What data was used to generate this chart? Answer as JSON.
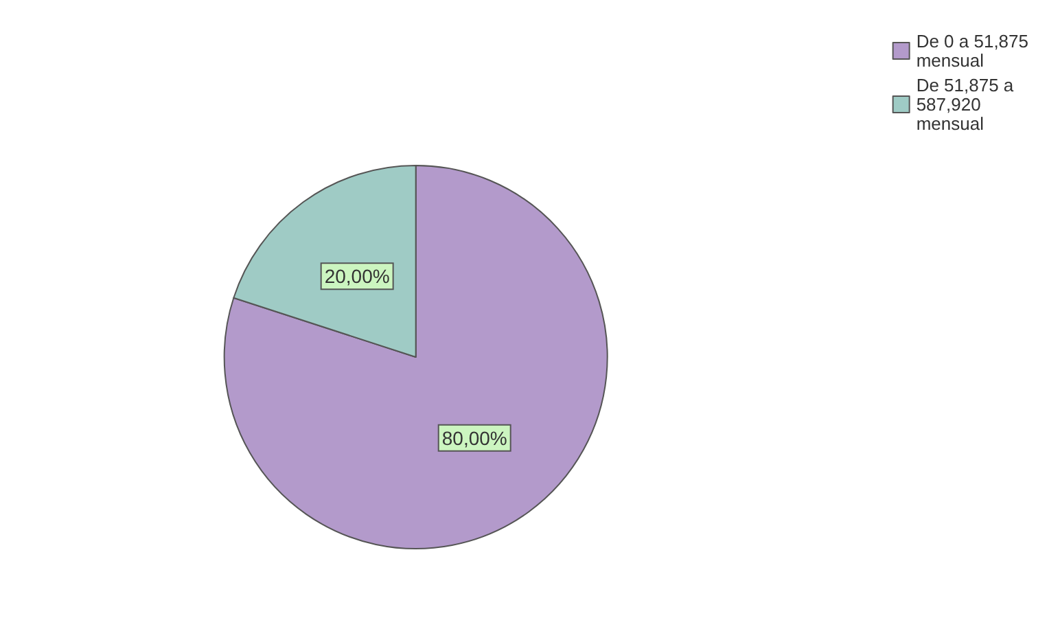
{
  "chart_data": {
    "type": "pie",
    "categories": [
      "De 0 a 51,875 mensual",
      "De 51,875 a 587,920 mensual"
    ],
    "values": [
      80,
      20
    ],
    "colors": [
      "#b39acb",
      "#9fcbc5"
    ],
    "value_labels": [
      "80,00%",
      "20,00%"
    ],
    "legend": "top right"
  }
}
